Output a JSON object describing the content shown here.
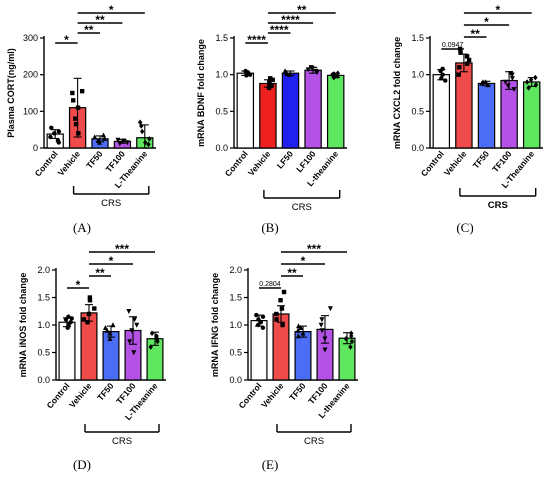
{
  "chart_data": [
    {
      "id": "A",
      "type": "bar",
      "panel_label": "(A)",
      "ylabel": "Plasma CORT(ng/ml)",
      "ylim": [
        0,
        300
      ],
      "yticks": [
        0,
        100,
        200,
        300
      ],
      "categories": [
        "Control",
        "Vehicle",
        "TF50",
        "TF100",
        "L-Theanine"
      ],
      "colors": [
        "#ffffff",
        "#ef4b4b",
        "#4b6cf5",
        "#b452e6",
        "#5fe65f"
      ],
      "values": [
        38,
        110,
        25,
        18,
        28
      ],
      "errors": [
        12,
        80,
        8,
        5,
        35
      ],
      "points": [
        [
          20,
          30,
          40,
          45,
          55,
          15
        ],
        [
          40,
          65,
          80,
          110,
          130,
          150,
          155
        ],
        [
          15,
          20,
          25,
          30,
          35
        ],
        [
          12,
          15,
          20,
          22
        ],
        [
          10,
          15,
          25,
          45,
          60,
          70
        ]
      ],
      "group_label": "CRS",
      "group_range": [
        1,
        4
      ],
      "significance": [
        {
          "from": 0,
          "to": 1,
          "label": "*"
        },
        {
          "from": 1,
          "to": 2,
          "label": "**"
        },
        {
          "from": 1,
          "to": 3,
          "label": "**"
        },
        {
          "from": 1,
          "to": 4,
          "label": "*"
        }
      ]
    },
    {
      "id": "B",
      "type": "bar",
      "panel_label": "(B)",
      "ylabel": "mRNA BDNF fold change",
      "ylim": [
        0,
        1.5
      ],
      "yticks": [
        0.0,
        0.5,
        1.0,
        1.5
      ],
      "tick_format": 1,
      "categories": [
        "Control",
        "Vehicle",
        "LF50",
        "LF100",
        "L-theanine"
      ],
      "colors": [
        "#ffffff",
        "#ef2020",
        "#2020ef",
        "#b452e6",
        "#5fe65f"
      ],
      "values": [
        1.02,
        0.88,
        1.02,
        1.06,
        0.99
      ],
      "errors": [
        0.03,
        0.05,
        0.03,
        0.04,
        0.03
      ],
      "points": [
        [
          0.99,
          1.0,
          1.02,
          1.03,
          1.05
        ],
        [
          0.82,
          0.85,
          0.87,
          0.9,
          0.93,
          0.95
        ],
        [
          1.0,
          1.01,
          1.03,
          1.05
        ],
        [
          1.03,
          1.05,
          1.07,
          1.09,
          1.1
        ],
        [
          0.96,
          0.98,
          1.0,
          1.01,
          1.02
        ]
      ],
      "group_label": "CRS",
      "group_range": [
        1,
        4
      ],
      "significance": [
        {
          "from": 0,
          "to": 1,
          "label": "****"
        },
        {
          "from": 1,
          "to": 2,
          "label": "****"
        },
        {
          "from": 1,
          "to": 3,
          "label": "****"
        },
        {
          "from": 1,
          "to": 4,
          "label": "**"
        }
      ]
    },
    {
      "id": "C",
      "type": "bar",
      "panel_label": "(C)",
      "ylabel": "mRNA CXCL2 fold change",
      "ylim": [
        0,
        1.5
      ],
      "yticks": [
        0.0,
        0.5,
        1.0,
        1.5
      ],
      "tick_format": 1,
      "categories": [
        "Control",
        "Vehicle",
        "TF50",
        "TF100",
        "L-Theanine"
      ],
      "colors": [
        "#ffffff",
        "#ef4b4b",
        "#4b6cf5",
        "#b452e6",
        "#5fe65f"
      ],
      "values": [
        1.0,
        1.16,
        0.88,
        0.92,
        0.9
      ],
      "errors": [
        0.07,
        0.12,
        0.03,
        0.12,
        0.06
      ],
      "points": [
        [
          0.92,
          0.95,
          1.0,
          1.05,
          1.08
        ],
        [
          1.0,
          1.1,
          1.15,
          1.2,
          1.25,
          1.3,
          1.35
        ],
        [
          0.86,
          0.88,
          0.9,
          0.9
        ],
        [
          0.8,
          0.85,
          0.9,
          0.95,
          1.0,
          1.02
        ],
        [
          0.82,
          0.86,
          0.9,
          0.93,
          0.96
        ]
      ],
      "group_label": "CRS",
      "group_range": [
        1,
        4
      ],
      "significance": [
        {
          "from": 0,
          "to": 1,
          "label": "0.0947"
        },
        {
          "from": 1,
          "to": 2,
          "label": "**"
        },
        {
          "from": 1,
          "to": 3,
          "label": "*"
        },
        {
          "from": 1,
          "to": 4,
          "label": "*"
        }
      ]
    },
    {
      "id": "D",
      "type": "bar",
      "panel_label": "(D)",
      "ylabel": "mRNA iNOS fold change",
      "ylim": [
        0,
        2.0
      ],
      "yticks": [
        0.0,
        0.5,
        1.0,
        1.5,
        2.0
      ],
      "tick_format": 1,
      "categories": [
        "Control",
        "Vehicle",
        "TF50",
        "TF100",
        "L-Theanine"
      ],
      "colors": [
        "#ffffff",
        "#ef4b4b",
        "#4b6cf5",
        "#b452e6",
        "#5fe65f"
      ],
      "values": [
        1.05,
        1.22,
        0.88,
        0.9,
        0.75
      ],
      "errors": [
        0.08,
        0.15,
        0.1,
        0.25,
        0.12
      ],
      "points": [
        [
          0.95,
          1.0,
          1.05,
          1.1,
          1.12,
          1.15
        ],
        [
          1.05,
          1.1,
          1.2,
          1.3,
          1.45,
          1.5
        ],
        [
          0.75,
          0.85,
          0.9,
          0.95,
          1.0
        ],
        [
          0.5,
          0.7,
          0.9,
          1.0,
          1.1,
          1.25
        ],
        [
          0.6,
          0.7,
          0.75,
          0.8,
          0.85
        ]
      ],
      "group_label": "CRS",
      "group_range": [
        1,
        4
      ],
      "significance": [
        {
          "from": 0,
          "to": 1,
          "label": "*"
        },
        {
          "from": 1,
          "to": 2,
          "label": "**"
        },
        {
          "from": 1,
          "to": 3,
          "label": "*"
        },
        {
          "from": 1,
          "to": 4,
          "label": "***"
        }
      ]
    },
    {
      "id": "E",
      "type": "bar",
      "panel_label": "(E)",
      "ylabel": "mRNA IFNG fold change",
      "ylim": [
        0,
        2.0
      ],
      "yticks": [
        0.0,
        0.5,
        1.0,
        1.5,
        2.0
      ],
      "tick_format": 1,
      "categories": [
        "Control",
        "Vehicle",
        "TF50",
        "TF100",
        "L-theanine"
      ],
      "colors": [
        "#ffffff",
        "#ef4b4b",
        "#4b6cf5",
        "#b452e6",
        "#5fe65f"
      ],
      "values": [
        1.08,
        1.2,
        0.88,
        0.92,
        0.76
      ],
      "errors": [
        0.1,
        0.15,
        0.1,
        0.25,
        0.1
      ],
      "points": [
        [
          0.95,
          1.0,
          1.05,
          1.1,
          1.15,
          1.18
        ],
        [
          1.0,
          1.1,
          1.2,
          1.3,
          1.45,
          1.6
        ],
        [
          0.8,
          0.85,
          0.9,
          0.95,
          0.98
        ],
        [
          0.55,
          0.75,
          0.9,
          1.0,
          1.1,
          1.3
        ],
        [
          0.6,
          0.7,
          0.75,
          0.8,
          0.85
        ]
      ],
      "group_label": "CRS",
      "group_range": [
        1,
        4
      ],
      "significance": [
        {
          "from": 0,
          "to": 1,
          "label": "0.2804"
        },
        {
          "from": 1,
          "to": 2,
          "label": "**"
        },
        {
          "from": 1,
          "to": 3,
          "label": "*"
        },
        {
          "from": 1,
          "to": 4,
          "label": "***"
        }
      ]
    }
  ]
}
